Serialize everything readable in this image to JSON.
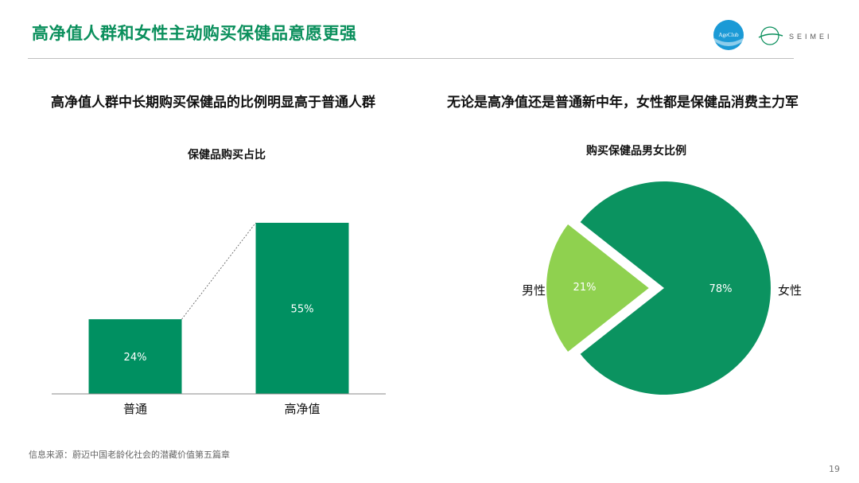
{
  "header": {
    "title": "高净值人群和女性主动购买保健品意愿更强",
    "logo1_text": "AgeClub",
    "logo2_text": "SEIMEI"
  },
  "left": {
    "heading": "高净值人群中长期购买保健品的比例明显高于普通人群"
  },
  "right": {
    "heading": "无论是高净值还是普通新中年，女性都是保健品消费主力军"
  },
  "footer": {
    "source": "信息来源：蔚迈中国老龄化社会的潜藏价值第五篇章",
    "page": "19"
  },
  "colors": {
    "accent": "#0a8f5c",
    "bar": "#009061",
    "pie_dark": "#0b9360",
    "pie_light": "#8fd14f"
  },
  "chart_data": [
    {
      "type": "bar",
      "title": "保健品购买占比",
      "categories": [
        "普通",
        "高净值"
      ],
      "values": [
        24,
        55
      ],
      "value_labels": [
        "24%",
        "55%"
      ],
      "ylim": [
        0,
        55
      ]
    },
    {
      "type": "pie",
      "title": "购买保健品男女比例",
      "labels": [
        "男性",
        "女性"
      ],
      "values": [
        21,
        78
      ],
      "value_labels": [
        "21%",
        "78%"
      ]
    }
  ]
}
